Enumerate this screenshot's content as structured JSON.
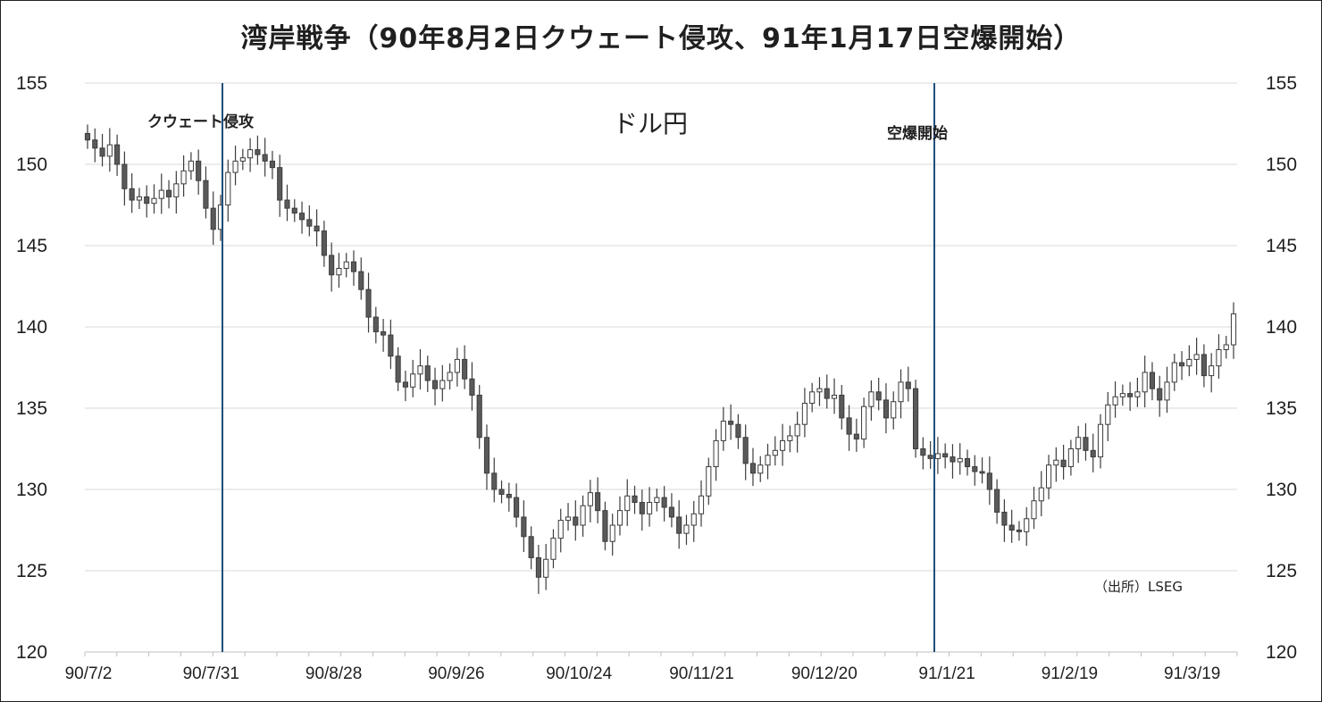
{
  "chart_data": {
    "type": "candlestick",
    "title": "湾岸戦争（90年8月2日クウェート侵攻、91年1月17日空爆開始）",
    "series_label": "ドル円",
    "source": "（出所）LSEG",
    "ylim": [
      120,
      155
    ],
    "yticks": [
      "120",
      "125",
      "130",
      "135",
      "140",
      "145",
      "150",
      "155"
    ],
    "xticks": [
      "90/7/2",
      "90/7/31",
      "90/8/28",
      "90/9/26",
      "90/10/24",
      "90/11/21",
      "90/12/20",
      "91/1/21",
      "91/2/19",
      "91/3/19"
    ],
    "grid": true,
    "events": [
      {
        "label": "クウェート侵攻",
        "date": "90/8/2"
      },
      {
        "label": "空爆開始",
        "date": "91/1/17"
      }
    ],
    "colors": {
      "up": "#ffffff",
      "down": "#5a5a5a",
      "outline": "#3c3c3c",
      "event_line": "#1f4e79",
      "grid": "#d9d9d9"
    },
    "ohlc_close_path": [
      151.5,
      151.0,
      150.5,
      151.2,
      150.0,
      148.5,
      147.8,
      148.0,
      147.6,
      147.9,
      148.4,
      148.0,
      148.8,
      149.6,
      150.2,
      149.0,
      147.3,
      146.0,
      147.5,
      149.5,
      150.2,
      150.4,
      150.9,
      150.6,
      150.2,
      149.8,
      147.8,
      147.3,
      147.0,
      146.6,
      146.2,
      145.9,
      144.4,
      143.2,
      143.6,
      144.0,
      143.4,
      142.3,
      140.6,
      139.7,
      139.5,
      138.2,
      136.6,
      136.3,
      137.1,
      137.6,
      136.7,
      136.2,
      136.7,
      137.2,
      138.0,
      136.8,
      135.8,
      133.2,
      131.0,
      130.0,
      129.7,
      129.5,
      128.3,
      127.1,
      125.8,
      124.6,
      125.7,
      127.0,
      128.1,
      128.3,
      127.8,
      129.0,
      129.8,
      128.7,
      126.8,
      127.8,
      128.7,
      129.6,
      129.2,
      128.5,
      129.2,
      129.5,
      128.9,
      128.3,
      127.3,
      127.8,
      128.5,
      129.6,
      131.4,
      133.0,
      134.2,
      134.0,
      133.2,
      131.6,
      131.0,
      131.5,
      132.1,
      132.4,
      133.0,
      133.3,
      134.0,
      135.3,
      136.0,
      136.2,
      135.6,
      135.8,
      134.4,
      133.4,
      133.1,
      135.1,
      136.0,
      135.5,
      134.4,
      135.4,
      136.6,
      136.2,
      132.5,
      132.1,
      131.9,
      132.2,
      132.0,
      131.7,
      131.9,
      131.4,
      131.1,
      131.0,
      130.0,
      128.6,
      127.8,
      127.5,
      127.4,
      128.2,
      129.3,
      130.1,
      131.5,
      131.8,
      131.4,
      132.5,
      133.2,
      132.4,
      132.0,
      134.0,
      135.2,
      135.7,
      135.9,
      135.7,
      136.0,
      137.2,
      136.2,
      135.5,
      136.6,
      137.8,
      137.6,
      138.0,
      138.3,
      137.0,
      137.6,
      138.6,
      138.9,
      140.8
    ]
  }
}
